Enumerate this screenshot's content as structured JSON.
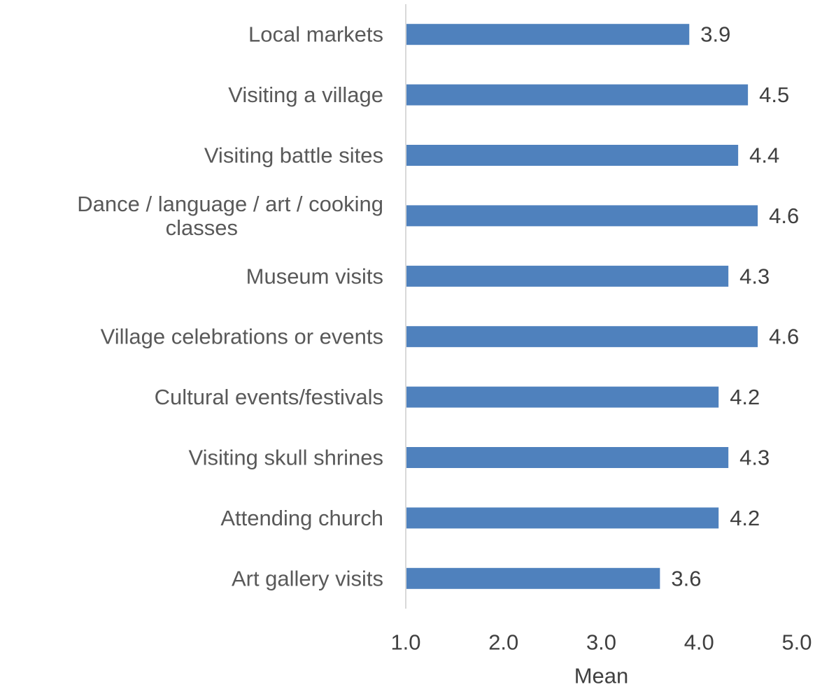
{
  "chart_data": {
    "type": "bar",
    "orientation": "horizontal",
    "categories": [
      [
        "Local markets"
      ],
      [
        "Visiting a village"
      ],
      [
        "Visiting battle sites"
      ],
      [
        "Dance / language / art / cooking",
        "classes"
      ],
      [
        "Museum visits"
      ],
      [
        "Village celebrations or events"
      ],
      [
        "Cultural events/festivals"
      ],
      [
        "Visiting skull shrines"
      ],
      [
        "Attending church"
      ],
      [
        "Art gallery visits"
      ]
    ],
    "values": [
      3.9,
      4.5,
      4.4,
      4.6,
      4.3,
      4.6,
      4.2,
      4.3,
      4.2,
      3.6
    ],
    "value_labels": [
      "3.9",
      "4.5",
      "4.4",
      "4.6",
      "4.3",
      "4.6",
      "4.2",
      "4.3",
      "4.2",
      "3.6"
    ],
    "xlabel": "Mean",
    "xlim": [
      1.0,
      5.0
    ],
    "xticks": [
      1.0,
      2.0,
      3.0,
      4.0,
      5.0
    ],
    "xtick_labels": [
      "1.0",
      "2.0",
      "3.0",
      "4.0",
      "5.0"
    ],
    "grid": false,
    "legend": "none",
    "colors": {
      "bar": "#4f81bd",
      "axis": "#d9d9d9",
      "text": "#595959"
    }
  }
}
